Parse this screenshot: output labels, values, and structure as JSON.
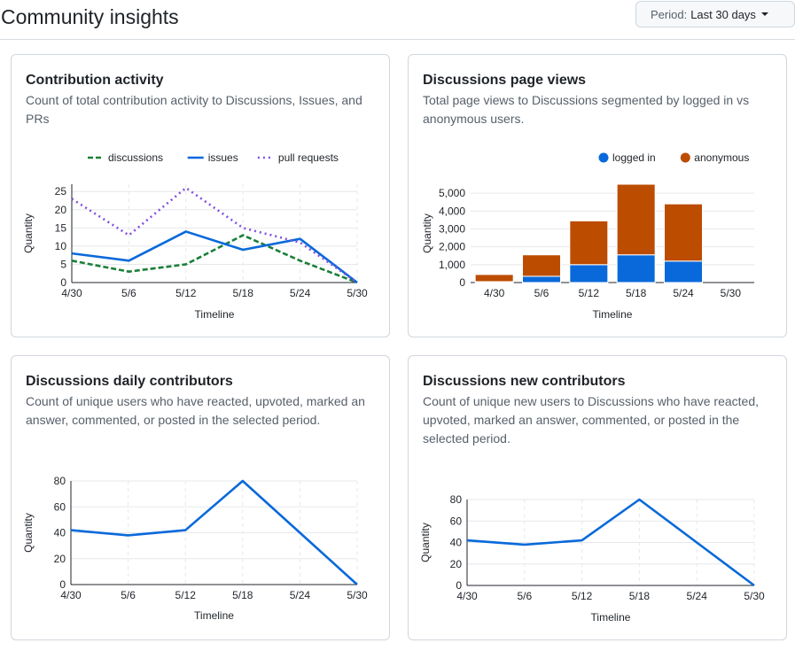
{
  "page": {
    "title": "Community insights",
    "period_label": "Period:",
    "period_value": "Last 30 days"
  },
  "cards": [
    {
      "title": "Contribution activity",
      "description": "Count of total contribution activity to Discussions, Issues, and PRs"
    },
    {
      "title": "Discussions page views",
      "description": "Total page views to Discussions segmented by logged in vs anonymous users."
    },
    {
      "title": "Discussions daily contributors",
      "description": "Count of unique users who have reacted, upvoted, marked an answer, commented, or posted in the selected period."
    },
    {
      "title": "Discussions new contributors",
      "description": "Count of unique new users to Discussions who have reacted, upvoted, marked an answer, commented, or posted in the selected period."
    }
  ],
  "chart_data": [
    {
      "type": "line",
      "categories": [
        "4/30",
        "5/6",
        "5/12",
        "5/18",
        "5/24",
        "5/30"
      ],
      "series": [
        {
          "name": "discussions",
          "values": [
            6,
            3,
            5,
            13,
            6,
            0
          ],
          "color": "#1a7f37",
          "style": "dashed"
        },
        {
          "name": "issues",
          "values": [
            8,
            6,
            14,
            9,
            12,
            0
          ],
          "color": "#0969da",
          "style": "solid"
        },
        {
          "name": "pull requests",
          "values": [
            23,
            13,
            26,
            15,
            11,
            0
          ],
          "color": "#8250df",
          "style": "dotted"
        }
      ],
      "xlabel": "Timeline",
      "ylabel": "Quantity",
      "ylim": [
        0,
        27
      ],
      "yticks": [
        0,
        5,
        10,
        15,
        20,
        25
      ],
      "legend": "top",
      "grid": true
    },
    {
      "type": "bar",
      "stacked": true,
      "categories": [
        "4/30",
        "5/6",
        "5/12",
        "5/18",
        "5/24",
        "5/30"
      ],
      "series": [
        {
          "name": "logged in",
          "values": [
            50,
            350,
            1000,
            1550,
            1200,
            0
          ],
          "color": "#0969da"
        },
        {
          "name": "anonymous",
          "values": [
            400,
            1200,
            2450,
            3950,
            3200,
            0
          ],
          "color": "#bc4c00"
        }
      ],
      "xlabel": "Timeline",
      "ylabel": "Quantity",
      "ylim": [
        0,
        5500
      ],
      "yticks": [
        0,
        1000,
        2000,
        3000,
        4000,
        5000
      ],
      "ytick_labels": [
        "0",
        "1,000",
        "2,000",
        "3,000",
        "4,000",
        "5,000"
      ],
      "legend": "top-right",
      "grid": true
    },
    {
      "type": "line",
      "categories": [
        "4/30",
        "5/6",
        "5/12",
        "5/18",
        "5/24",
        "5/30"
      ],
      "series": [
        {
          "values": [
            42,
            38,
            42,
            80,
            40,
            0
          ],
          "color": "#0969da",
          "style": "solid"
        }
      ],
      "xlabel": "Timeline",
      "ylabel": "Quantity",
      "ylim": [
        0,
        80
      ],
      "yticks": [
        0,
        20,
        40,
        60,
        80
      ],
      "grid": true
    },
    {
      "type": "line",
      "categories": [
        "4/30",
        "5/6",
        "5/12",
        "5/18",
        "5/24",
        "5/30"
      ],
      "series": [
        {
          "values": [
            42,
            38,
            42,
            80,
            40,
            0
          ],
          "color": "#0969da",
          "style": "solid"
        }
      ],
      "xlabel": "Timeline",
      "ylabel": "Quantity",
      "ylim": [
        0,
        80
      ],
      "yticks": [
        0,
        20,
        40,
        60,
        80
      ],
      "grid": true
    }
  ]
}
